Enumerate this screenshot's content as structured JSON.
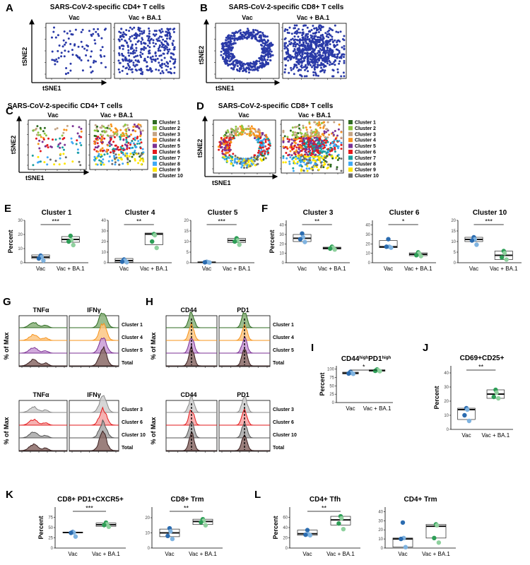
{
  "panels": {
    "A": {
      "letter": "A",
      "title": "SARS-CoV-2-specific CD4+ T cells",
      "groups": [
        "Vac",
        "Vac + BA.1"
      ],
      "xlabel": "tSNE1",
      "ylabel": "tSNE2"
    },
    "B": {
      "letter": "B",
      "title": "SARS-CoV-2-specific CD8+ T cells",
      "groups": [
        "Vac",
        "Vac + BA.1"
      ],
      "xlabel": "tSNE1",
      "ylabel": "tSNE2"
    },
    "C": {
      "letter": "C",
      "title": "SARS-CoV-2-specific CD4+ T cells",
      "groups": [
        "Vac",
        "Vac + BA.1"
      ],
      "xlabel": "tSNE1",
      "ylabel": "tSNE2"
    },
    "D": {
      "letter": "D",
      "title": "SARS-CoV-2-specific CD8+ T cells",
      "groups": [
        "Vac",
        "Vac + BA.1"
      ],
      "xlabel": "tSNE1",
      "ylabel": "tSNE2"
    },
    "E": {
      "letter": "E"
    },
    "F": {
      "letter": "F"
    },
    "G": {
      "letter": "G",
      "col_headers": [
        "TNFα",
        "IFNγ"
      ],
      "ylabel": "% of Max",
      "rows_top": [
        "Cluster 1",
        "Cluster 4",
        "Cluster 5",
        "Total"
      ],
      "rows_bottom": [
        "Cluster 3",
        "Cluster 6",
        "Cluster 10",
        "Total"
      ]
    },
    "H": {
      "letter": "H",
      "col_headers": [
        "CD44",
        "PD1"
      ],
      "ylabel": "% of Max",
      "rows_top": [
        "Cluster 1",
        "Cluster 4",
        "Cluster 5",
        "Total"
      ],
      "rows_bottom": [
        "Cluster 3",
        "Cluster 6",
        "Cluster 10",
        "Total"
      ]
    },
    "I": {
      "letter": "I",
      "title_main1": "CD44",
      "title_sup1": "high",
      "title_main2": "PD1",
      "title_sup2": "high"
    },
    "J": {
      "letter": "J"
    },
    "K": {
      "letter": "K"
    },
    "L": {
      "letter": "L"
    }
  },
  "legend": {
    "items": [
      "Cluster 1",
      "Cluster 2",
      "Cluster 3",
      "Cluster 4",
      "Cluster 5",
      "Cluster 6",
      "Cluster 7",
      "Cluster 8",
      "Cluster 9",
      "Cluster 10"
    ],
    "colors": [
      "#2e6b22",
      "#8dc63f",
      "#c4a484",
      "#f7941d",
      "#7b3294",
      "#e31a1c",
      "#1a9e9e",
      "#3fa9f5",
      "#ffe600",
      "#6b6b6b"
    ]
  },
  "colors": {
    "vac": "#2b6cb0",
    "vac_light": "#7fb3e0",
    "ba1": "#2e9e57",
    "ba1_light": "#8fd19e",
    "tsne": "#2a3aa8"
  },
  "chart_data": [
    {
      "id": "E1",
      "type": "box",
      "title": "Cluster 1",
      "ylabel": "Percent",
      "categories": [
        "Vac",
        "Vac + BA.1"
      ],
      "ylim": [
        0,
        30
      ],
      "yticks": [
        0,
        10,
        20,
        30
      ],
      "sig": "***",
      "series": [
        {
          "name": "Vac",
          "values": [
            5,
            4,
            3,
            1.5
          ],
          "box": [
            3,
            4,
            5.5
          ]
        },
        {
          "name": "Vac + BA.1",
          "values": [
            19,
            16,
            15,
            12.5
          ],
          "box": [
            14.5,
            16.5,
            18.5
          ]
        }
      ]
    },
    {
      "id": "E4",
      "type": "box",
      "title": "Cluster 4",
      "ylabel": "",
      "categories": [
        "Vac",
        "Vac + BA.1"
      ],
      "ylim": [
        0,
        40
      ],
      "yticks": [
        0,
        10,
        20,
        30,
        40
      ],
      "sig": "**",
      "series": [
        {
          "name": "Vac",
          "values": [
            3,
            2,
            1,
            0.5
          ],
          "box": [
            0.5,
            2,
            4
          ]
        },
        {
          "name": "Vac + BA.1",
          "values": [
            27,
            26,
            20,
            14
          ],
          "box": [
            17,
            27,
            28
          ]
        }
      ]
    },
    {
      "id": "E5",
      "type": "box",
      "title": "Cluster 5",
      "ylabel": "",
      "categories": [
        "Vac",
        "Vac + BA.1"
      ],
      "ylim": [
        0,
        20
      ],
      "yticks": [
        0,
        5,
        10,
        15,
        20
      ],
      "sig": "***",
      "series": [
        {
          "name": "Vac",
          "values": [
            0.4,
            0.3,
            0.2,
            0.1
          ],
          "box": [
            0.1,
            0.2,
            0.4
          ]
        },
        {
          "name": "Vac + BA.1",
          "values": [
            11.5,
            10.5,
            10,
            8.5
          ],
          "box": [
            9.5,
            10.5,
            11.5
          ]
        }
      ]
    },
    {
      "id": "F3",
      "type": "box",
      "title": "Cluster 3",
      "ylabel": "Percent",
      "categories": [
        "Vac",
        "Vac + BA.1"
      ],
      "ylim": [
        0,
        45
      ],
      "yticks": [
        0,
        10,
        20,
        30,
        40
      ],
      "sig": "**",
      "series": [
        {
          "name": "Vac",
          "values": [
            31,
            27,
            25,
            22
          ],
          "box": [
            22.5,
            26,
            30
          ]
        },
        {
          "name": "Vac + BA.1",
          "values": [
            17,
            16,
            15,
            14
          ],
          "box": [
            14.5,
            15.5,
            16.5
          ]
        }
      ]
    },
    {
      "id": "F6",
      "type": "box",
      "title": "Cluster 6",
      "ylabel": "",
      "categories": [
        "Vac",
        "Vac + BA.1"
      ],
      "ylim": [
        0,
        45
      ],
      "yticks": [
        0,
        10,
        20,
        30,
        40
      ],
      "sig": "*",
      "series": [
        {
          "name": "Vac",
          "values": [
            25,
            17,
            17,
            16
          ],
          "box": [
            16,
            17,
            23.5
          ]
        },
        {
          "name": "Vac + BA.1",
          "values": [
            11,
            10,
            8,
            7
          ],
          "box": [
            7.5,
            9,
            10.5
          ]
        }
      ]
    },
    {
      "id": "F10",
      "type": "box",
      "title": "Cluster 10",
      "ylabel": "",
      "categories": [
        "Vac",
        "Vac + BA.1"
      ],
      "ylim": [
        0,
        20
      ],
      "yticks": [
        0,
        5,
        10,
        15,
        20
      ],
      "sig": "***",
      "series": [
        {
          "name": "Vac",
          "values": [
            12,
            11,
            10.5,
            8.5
          ],
          "box": [
            10,
            11,
            12
          ]
        },
        {
          "name": "Vac + BA.1",
          "values": [
            5.5,
            4.5,
            2.5,
            1.5
          ],
          "box": [
            1.5,
            3.5,
            5.5
          ]
        }
      ]
    },
    {
      "id": "I",
      "type": "box",
      "title": "",
      "ylabel": "Percent",
      "categories": [
        "Vac",
        "Vac + BA.1"
      ],
      "ylim": [
        0,
        110
      ],
      "yticks": [
        0,
        25,
        50,
        75,
        100
      ],
      "sig": "*",
      "series": [
        {
          "name": "Vac",
          "values": [
            92,
            89,
            87,
            86
          ],
          "box": [
            86,
            88,
            91
          ]
        },
        {
          "name": "Vac + BA.1",
          "values": [
            99,
            97,
            95,
            94
          ],
          "box": [
            94,
            96,
            98
          ]
        }
      ]
    },
    {
      "id": "J",
      "type": "box",
      "title": "CD69+CD25+",
      "ylabel": "Percent",
      "categories": [
        "Vac",
        "Vac + BA.1"
      ],
      "ylim": [
        0,
        45
      ],
      "yticks": [
        0,
        10,
        20,
        30,
        40
      ],
      "sig": "**",
      "series": [
        {
          "name": "Vac",
          "values": [
            15,
            14,
            10,
            6
          ],
          "box": [
            7,
            14,
            15
          ]
        },
        {
          "name": "Vac + BA.1",
          "values": [
            28,
            26,
            23,
            22
          ],
          "box": [
            22,
            25,
            28
          ]
        }
      ]
    },
    {
      "id": "K1",
      "type": "box",
      "title": "CD8+ PD1+CXCR5+",
      "ylabel": "Percent",
      "categories": [
        "Vac",
        "Vac + BA.1"
      ],
      "ylim": [
        0,
        100
      ],
      "yticks": [
        0,
        25,
        50,
        75
      ],
      "sig": "***",
      "series": [
        {
          "name": "Vac",
          "values": [
            39,
            38,
            37,
            28
          ],
          "box": [
            37,
            38,
            39
          ]
        },
        {
          "name": "Vac + BA.1",
          "values": [
            62,
            58,
            56,
            52
          ],
          "box": [
            53,
            57,
            61
          ]
        }
      ]
    },
    {
      "id": "K2",
      "type": "box",
      "title": "CD8+ Trm",
      "ylabel": "",
      "categories": [
        "Vac",
        "Vac + BA.1"
      ],
      "ylim": [
        0,
        27
      ],
      "yticks": [
        0,
        10,
        20
      ],
      "sig": "**",
      "series": [
        {
          "name": "Vac",
          "values": [
            13,
            11,
            8,
            6
          ],
          "box": [
            7.5,
            10,
            12.5
          ]
        },
        {
          "name": "Vac + BA.1",
          "values": [
            19,
            18,
            17,
            15
          ],
          "box": [
            15.5,
            17.5,
            19
          ]
        }
      ]
    },
    {
      "id": "L1",
      "type": "box",
      "title": "CD4+ Tfh",
      "ylabel": "Percent",
      "categories": [
        "Vac",
        "Vac + BA.1"
      ],
      "ylim": [
        0,
        80
      ],
      "yticks": [
        0,
        20,
        40,
        60
      ],
      "sig": "**",
      "series": [
        {
          "name": "Vac",
          "values": [
            35,
            27,
            26,
            25
          ],
          "box": [
            25,
            28,
            35
          ]
        },
        {
          "name": "Vac + BA.1",
          "values": [
            62,
            58,
            48,
            37
          ],
          "box": [
            45,
            55,
            62
          ]
        }
      ]
    },
    {
      "id": "L2",
      "type": "box",
      "title": "CD4+ Trm",
      "ylabel": "",
      "categories": [
        "Vac",
        "Vac + BA.1"
      ],
      "ylim": [
        0,
        45
      ],
      "yticks": [
        0,
        10,
        20,
        30,
        40
      ],
      "sig": "",
      "series": [
        {
          "name": "Vac",
          "values": [
            28,
            11,
            10,
            1
          ],
          "box": [
            1,
            10,
            11
          ]
        },
        {
          "name": "Vac + BA.1",
          "values": [
            26,
            25,
            11,
            6
          ],
          "box": [
            11,
            24,
            26
          ]
        }
      ]
    }
  ]
}
